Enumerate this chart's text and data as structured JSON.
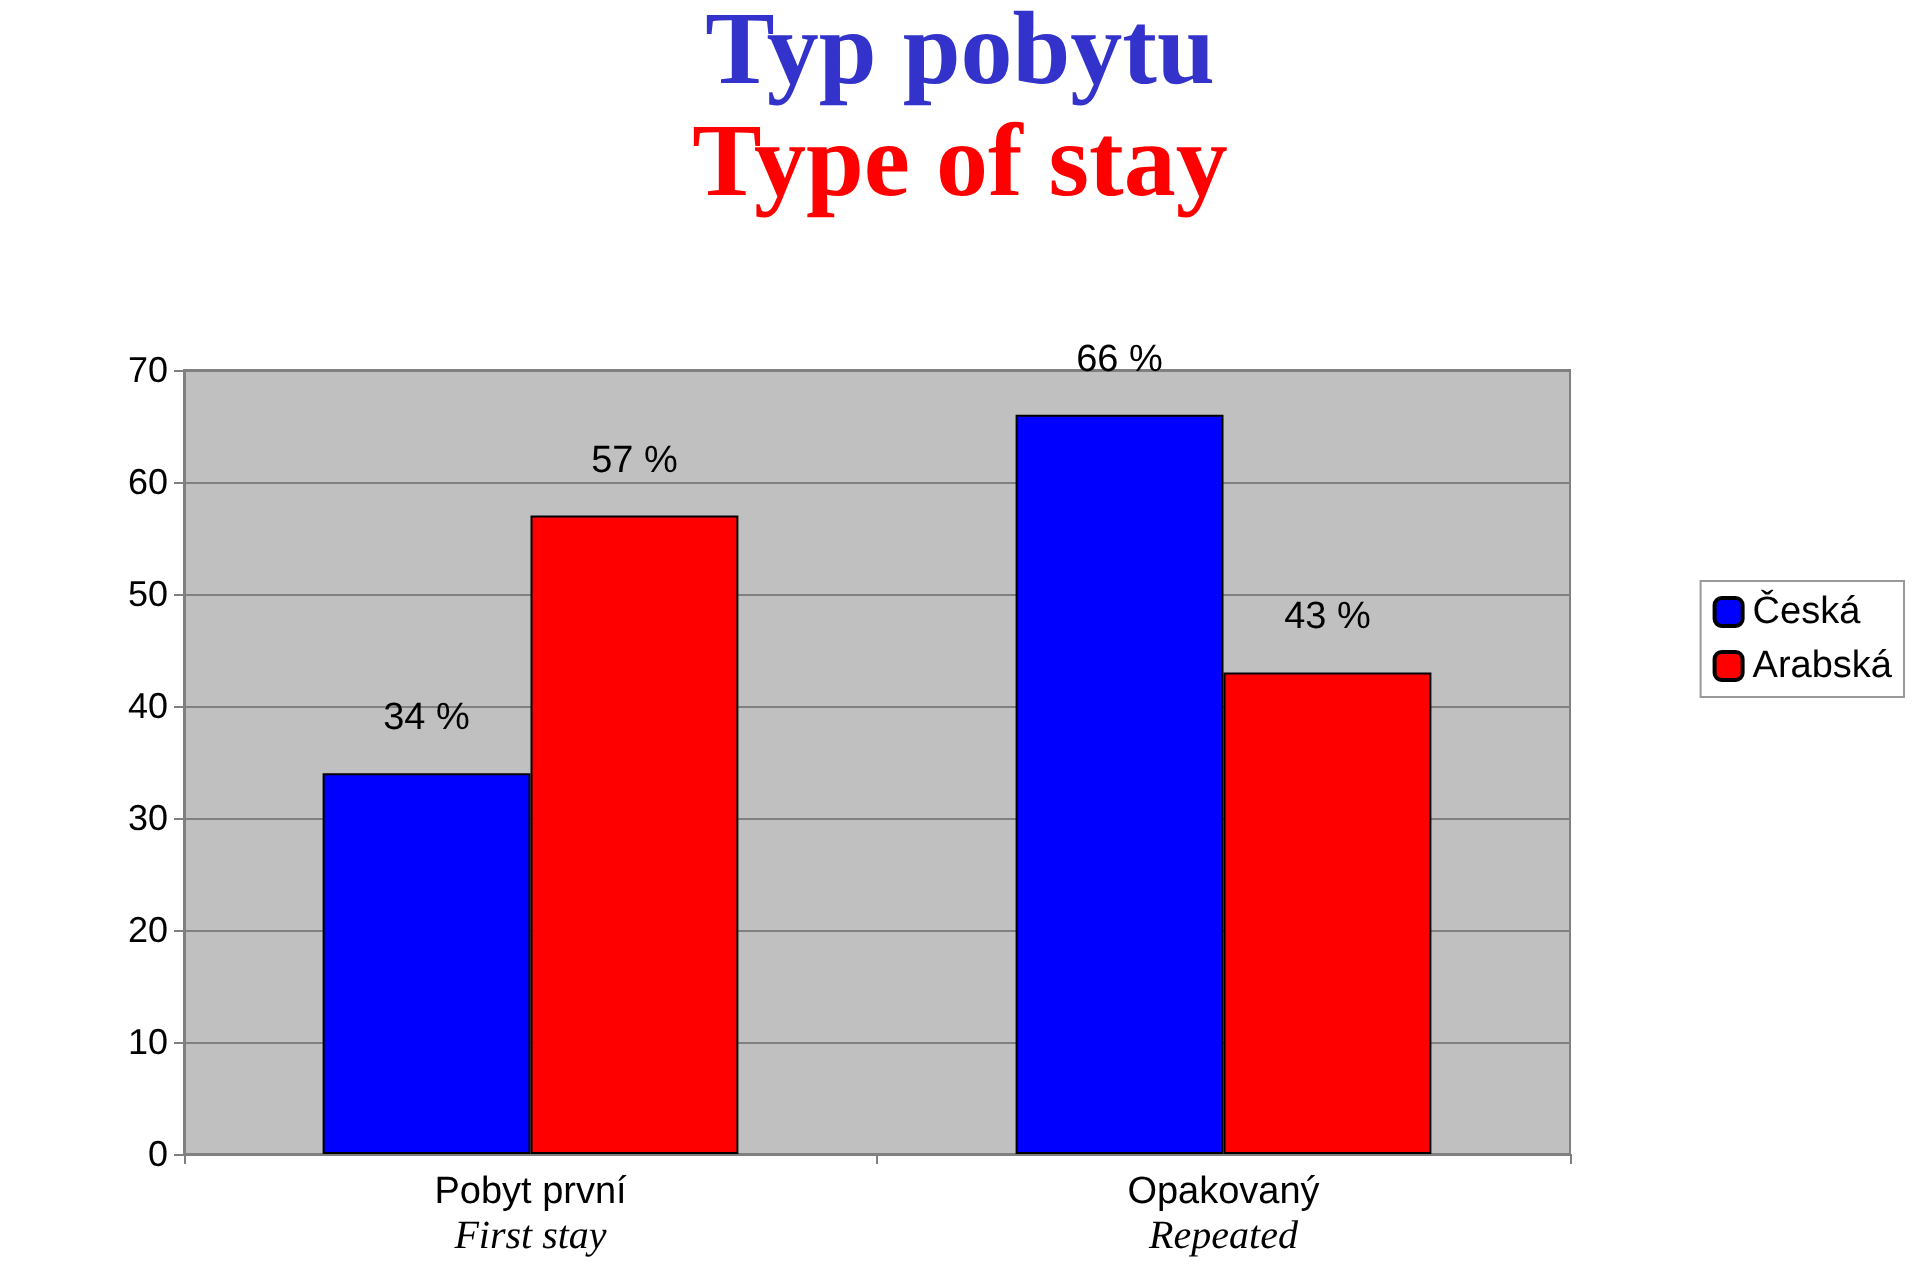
{
  "chart_data": {
    "type": "bar",
    "title": "Typ pobytu",
    "subtitle": "Type of stay",
    "categories": [
      "Pobyt první\nFirst stay",
      "Opakovaný\nRepeated"
    ],
    "series": [
      {
        "name": "Česká",
        "color": "#0000ff",
        "values": [
          34,
          66
        ],
        "value_labels": [
          "34 %",
          "66 %"
        ]
      },
      {
        "name": "Arabská",
        "color": "#ff0000",
        "values": [
          57,
          43
        ],
        "value_labels": [
          "57 %",
          "43 %"
        ]
      }
    ],
    "ylim": [
      0,
      70
    ],
    "yticks": [
      0,
      10,
      20,
      30,
      40,
      50,
      60,
      70
    ],
    "grid": "y",
    "legend": "right"
  }
}
